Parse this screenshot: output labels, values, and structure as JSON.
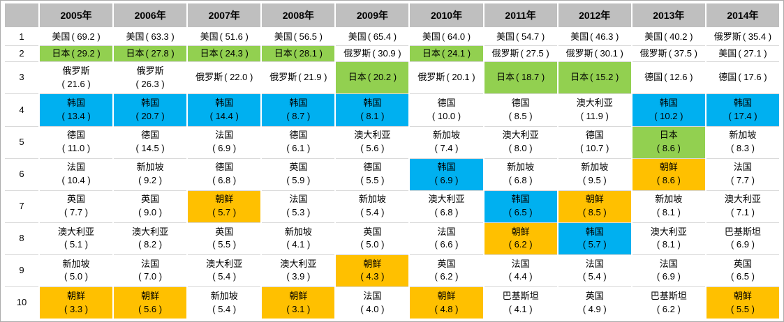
{
  "colors": {
    "header_bg": "#BFBFBF",
    "green": "#92D050",
    "blue": "#00B0F0",
    "orange": "#FFC000",
    "row_line": "#D9D9D9",
    "outer_border": "#ABABAB"
  },
  "chart_data": {
    "type": "table",
    "corner": "",
    "columns": [
      "2005年",
      "2006年",
      "2007年",
      "2008年",
      "2009年",
      "2010年",
      "2011年",
      "2012年",
      "2013年",
      "2014年"
    ],
    "row_labels": [
      "1",
      "2",
      "3",
      "4",
      "5",
      "6",
      "7",
      "8",
      "9",
      "10"
    ],
    "highlight_color_meaning": {
      "green": "#92D050",
      "blue": "#00B0F0",
      "orange": "#FFC000"
    },
    "rows": [
      {
        "rank": "1",
        "cells": [
          {
            "country": "美国",
            "value": "69.2"
          },
          {
            "country": "美国",
            "value": "63.3"
          },
          {
            "country": "美国",
            "value": "51.6"
          },
          {
            "country": "美国",
            "value": "56.5"
          },
          {
            "country": "美国",
            "value": "65.4"
          },
          {
            "country": "美国",
            "value": "64.0"
          },
          {
            "country": "美国",
            "value": "54.7"
          },
          {
            "country": "美国",
            "value": "46.3"
          },
          {
            "country": "美国",
            "value": "40.2"
          },
          {
            "country": "俄罗斯",
            "value": "35.4"
          }
        ]
      },
      {
        "rank": "2",
        "cells": [
          {
            "country": "日本",
            "value": "29.2",
            "bg": "green"
          },
          {
            "country": "日本",
            "value": "27.8",
            "bg": "green"
          },
          {
            "country": "日本",
            "value": "24.3",
            "bg": "green"
          },
          {
            "country": "日本",
            "value": "28.1",
            "bg": "green"
          },
          {
            "country": "俄罗斯",
            "value": "30.9"
          },
          {
            "country": "日本",
            "value": "24.1",
            "bg": "green"
          },
          {
            "country": "俄罗斯",
            "value": "27.5"
          },
          {
            "country": "俄罗斯",
            "value": "30.1"
          },
          {
            "country": "俄罗斯",
            "value": "37.5"
          },
          {
            "country": "美国",
            "value": "27.1"
          }
        ]
      },
      {
        "rank": "3",
        "cells": [
          {
            "country": "俄罗斯",
            "value": "21.6",
            "wrap": true
          },
          {
            "country": "俄罗斯",
            "value": "26.3",
            "wrap": true
          },
          {
            "country": "俄罗斯",
            "value": "22.0"
          },
          {
            "country": "俄罗斯",
            "value": "21.9"
          },
          {
            "country": "日本",
            "value": "20.2",
            "bg": "green"
          },
          {
            "country": "俄罗斯",
            "value": "20.1"
          },
          {
            "country": "日本",
            "value": "18.7",
            "bg": "green"
          },
          {
            "country": "日本",
            "value": "15.2",
            "bg": "green"
          },
          {
            "country": "德国",
            "value": "12.6"
          },
          {
            "country": "德国",
            "value": "17.6"
          }
        ]
      },
      {
        "rank": "4",
        "cells": [
          {
            "country": "韩国",
            "value": "13.4",
            "bg": "blue",
            "wrap": true
          },
          {
            "country": "韩国",
            "value": "20.7",
            "bg": "blue",
            "wrap": true
          },
          {
            "country": "韩国",
            "value": "14.4",
            "bg": "blue",
            "wrap": true
          },
          {
            "country": "韩国",
            "value": "8.7",
            "bg": "blue",
            "wrap": true
          },
          {
            "country": "韩国",
            "value": "8.1",
            "bg": "blue",
            "wrap": true
          },
          {
            "country": "德国",
            "value": "10.0",
            "wrap": true
          },
          {
            "country": "德国",
            "value": "8.5",
            "wrap": true
          },
          {
            "country": "澳大利亚",
            "value": "11.9",
            "wrap": true
          },
          {
            "country": "韩国",
            "value": "10.2",
            "bg": "blue",
            "wrap": true
          },
          {
            "country": "韩国",
            "value": "17.4",
            "bg": "blue",
            "wrap": true
          }
        ]
      },
      {
        "rank": "5",
        "cells": [
          {
            "country": "德国",
            "value": "11.0",
            "wrap": true
          },
          {
            "country": "德国",
            "value": "14.5",
            "wrap": true
          },
          {
            "country": "法国",
            "value": "6.9",
            "wrap": true
          },
          {
            "country": "德国",
            "value": "6.1",
            "wrap": true
          },
          {
            "country": "澳大利亚",
            "value": "5.6",
            "wrap": true
          },
          {
            "country": "新加坡",
            "value": "7.4",
            "wrap": true
          },
          {
            "country": "澳大利亚",
            "value": "8.0",
            "wrap": true
          },
          {
            "country": "德国",
            "value": "10.7",
            "wrap": true
          },
          {
            "country": "日本",
            "value": "8.6",
            "bg": "green",
            "wrap": true
          },
          {
            "country": "新加坡",
            "value": "8.3",
            "wrap": true
          }
        ]
      },
      {
        "rank": "6",
        "cells": [
          {
            "country": "法国",
            "value": "10.4",
            "wrap": true
          },
          {
            "country": "新加坡",
            "value": "9.2",
            "wrap": true
          },
          {
            "country": "德国",
            "value": "6.8",
            "wrap": true
          },
          {
            "country": "英国",
            "value": "5.9",
            "wrap": true
          },
          {
            "country": "德国",
            "value": "5.5",
            "wrap": true
          },
          {
            "country": "韩国",
            "value": "6.9",
            "bg": "blue",
            "wrap": true
          },
          {
            "country": "新加坡",
            "value": "6.8",
            "wrap": true
          },
          {
            "country": "新加坡",
            "value": "9.5",
            "wrap": true
          },
          {
            "country": "朝鲜",
            "value": "8.6",
            "bg": "orange",
            "wrap": true
          },
          {
            "country": "法国",
            "value": "7.7",
            "wrap": true
          }
        ]
      },
      {
        "rank": "7",
        "cells": [
          {
            "country": "英国",
            "value": "7.7",
            "wrap": true
          },
          {
            "country": "英国",
            "value": "9.0",
            "wrap": true
          },
          {
            "country": "朝鲜",
            "value": "5.7",
            "bg": "orange",
            "wrap": true
          },
          {
            "country": "法国",
            "value": "5.3",
            "wrap": true
          },
          {
            "country": "新加坡",
            "value": "5.4",
            "wrap": true
          },
          {
            "country": "澳大利亚",
            "value": "6.8",
            "wrap": true
          },
          {
            "country": "韩国",
            "value": "6.5",
            "bg": "blue",
            "wrap": true
          },
          {
            "country": "朝鲜",
            "value": "8.5",
            "bg": "orange",
            "wrap": true
          },
          {
            "country": "新加坡",
            "value": "8.1",
            "wrap": true
          },
          {
            "country": "澳大利亚",
            "value": "7.1",
            "wrap": true
          }
        ]
      },
      {
        "rank": "8",
        "cells": [
          {
            "country": "澳大利亚",
            "value": "5.1",
            "wrap": true
          },
          {
            "country": "澳大利亚",
            "value": "8.2",
            "wrap": true
          },
          {
            "country": "英国",
            "value": "5.5",
            "wrap": true
          },
          {
            "country": "新加坡",
            "value": "4.1",
            "wrap": true
          },
          {
            "country": "英国",
            "value": "5.0",
            "wrap": true
          },
          {
            "country": "法国",
            "value": "6.6",
            "wrap": true
          },
          {
            "country": "朝鲜",
            "value": "6.2",
            "bg": "orange",
            "wrap": true
          },
          {
            "country": "韩国",
            "value": "5.7",
            "bg": "blue",
            "wrap": true
          },
          {
            "country": "澳大利亚",
            "value": "8.1",
            "wrap": true
          },
          {
            "country": "巴基斯坦",
            "value": "6.9",
            "wrap": true
          }
        ]
      },
      {
        "rank": "9",
        "cells": [
          {
            "country": "新加坡",
            "value": "5.0",
            "wrap": true
          },
          {
            "country": "法国",
            "value": "7.0",
            "wrap": true
          },
          {
            "country": "澳大利亚",
            "value": "5.4",
            "wrap": true
          },
          {
            "country": "澳大利亚",
            "value": "3.9",
            "wrap": true
          },
          {
            "country": "朝鲜",
            "value": "4.3",
            "bg": "orange",
            "wrap": true
          },
          {
            "country": "英国",
            "value": "6.2",
            "wrap": true
          },
          {
            "country": "法国",
            "value": "4.4",
            "wrap": true
          },
          {
            "country": "法国",
            "value": "5.4",
            "wrap": true
          },
          {
            "country": "法国",
            "value": "6.9",
            "wrap": true
          },
          {
            "country": "英国",
            "value": "6.5",
            "wrap": true
          }
        ]
      },
      {
        "rank": "10",
        "cells": [
          {
            "country": "朝鲜",
            "value": "3.3",
            "bg": "orange",
            "wrap": true
          },
          {
            "country": "朝鲜",
            "value": "5.6",
            "bg": "orange",
            "wrap": true
          },
          {
            "country": "新加坡",
            "value": "5.4",
            "wrap": true
          },
          {
            "country": "朝鲜",
            "value": "3.1",
            "bg": "orange",
            "wrap": true
          },
          {
            "country": "法国",
            "value": "4.0",
            "wrap": true
          },
          {
            "country": "朝鲜",
            "value": "4.8",
            "bg": "orange",
            "wrap": true
          },
          {
            "country": "巴基斯坦",
            "value": "4.1",
            "wrap": true
          },
          {
            "country": "英国",
            "value": "4.9",
            "wrap": true
          },
          {
            "country": "巴基斯坦",
            "value": "6.2",
            "wrap": true
          },
          {
            "country": "朝鲜",
            "value": "5.5",
            "bg": "orange",
            "wrap": true
          }
        ]
      }
    ]
  }
}
